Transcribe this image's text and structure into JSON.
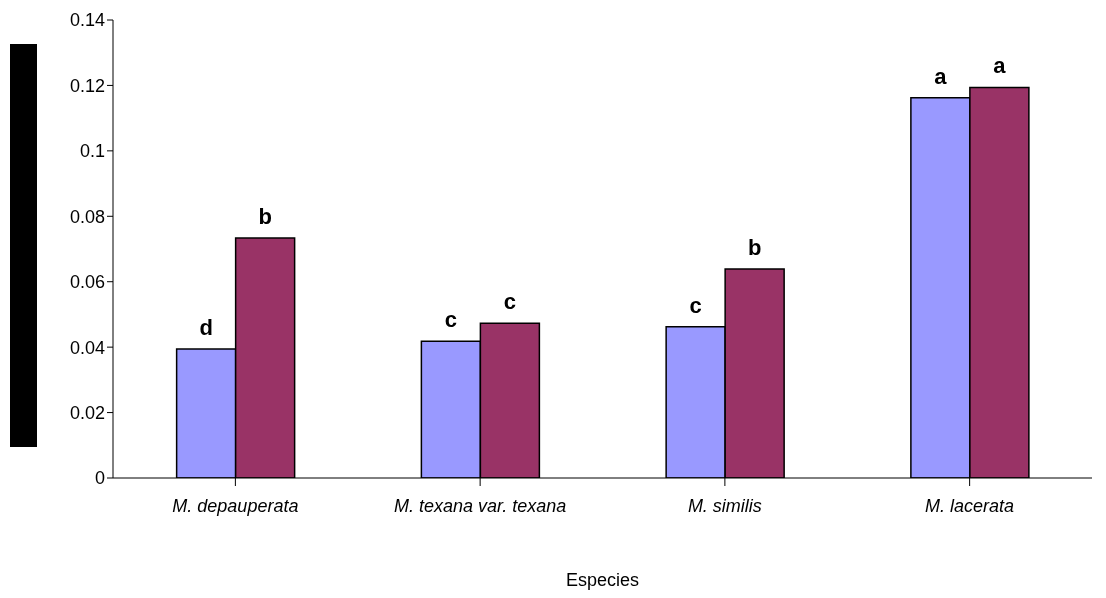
{
  "chart_data": {
    "type": "bar",
    "xlabel": "Especies",
    "categories": [
      "M. depauperata",
      "M. texana var. texana",
      "M. similis",
      "M. lacerata"
    ],
    "series": [
      {
        "color": "#9999ff",
        "values": [
          0.0394,
          0.0418,
          0.0462,
          0.1162
        ],
        "value_labels": [
          "d",
          "c",
          "c",
          "a"
        ]
      },
      {
        "color": "#993366",
        "values": [
          0.0734,
          0.0473,
          0.0639,
          0.1194
        ],
        "value_labels": [
          "b",
          "c",
          "b",
          "a"
        ]
      }
    ],
    "ylim": [
      0,
      0.14
    ],
    "yticks": [
      0,
      0.02,
      0.04,
      0.06,
      0.08,
      0.1,
      0.12,
      0.14
    ],
    "grid": false,
    "legend": false
  }
}
